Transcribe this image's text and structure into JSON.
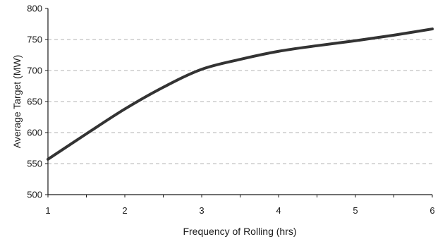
{
  "chart_data": {
    "type": "line",
    "title": "",
    "xlabel": "Frequency of Rolling (hrs)",
    "ylabel": "Average Target (MW)",
    "xlim": [
      1,
      6
    ],
    "ylim": [
      500,
      800
    ],
    "x_ticks": [
      1,
      2,
      3,
      4,
      5,
      6
    ],
    "y_ticks": [
      500,
      550,
      600,
      650,
      700,
      750,
      800
    ],
    "grid": "horizontal dashed",
    "legend": "none",
    "series": [
      {
        "color": "#333333",
        "x": [
          1,
          1.5,
          2,
          2.5,
          3,
          3.5,
          4,
          4.5,
          5,
          5.5,
          6
        ],
        "y": [
          557,
          598,
          638,
          673,
          702,
          718,
          731,
          740,
          748,
          757,
          767
        ]
      }
    ]
  }
}
